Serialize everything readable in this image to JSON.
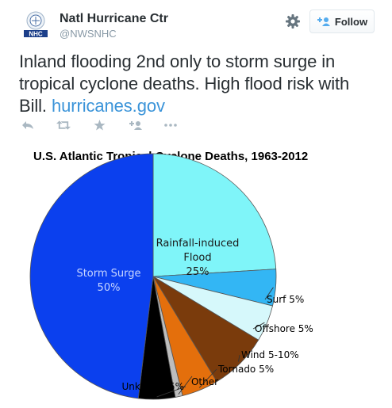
{
  "tweet": {
    "author_name": "Natl Hurricane Ctr",
    "handle": "@NWSNHC",
    "avatar_label": "NHC",
    "follow_label": "Follow",
    "text_before_link": "Inland flooding 2nd only to storm surge in tropical cyclone deaths. High flood risk with Bill. ",
    "link_text": "hurricanes.gov",
    "icons": [
      "reply-icon",
      "retweet-icon",
      "favorite-icon",
      "follow-icon",
      "more-icon",
      "gear-icon"
    ],
    "colors": {
      "link": "#3b94d9",
      "muted": "#8899a6",
      "text": "#292f33"
    }
  },
  "chart_data": {
    "type": "pie",
    "title": "U.S. Atlantic Tropical Cyclone Deaths,  1963-2012",
    "slices": [
      {
        "key": "flood",
        "name": "Rainfall-induced Flood",
        "value": 25,
        "label_lines": [
          "Rainfall-induced",
          "Flood",
          "25%"
        ],
        "color": "#7ff5f9"
      },
      {
        "key": "surf",
        "name": "Surf",
        "value": 5,
        "label": "Surf 5%",
        "color": "#33b6f4"
      },
      {
        "key": "offshore",
        "name": "Offshore",
        "value": 5,
        "label": "Offshore 5%",
        "color": "#d6f8fb"
      },
      {
        "key": "wind",
        "name": "Wind",
        "value": 8,
        "label": "Wind 5-10%",
        "color": "#7a3b0c"
      },
      {
        "key": "tornado",
        "name": "Tornado",
        "value": 5,
        "label": "Tornado 5%",
        "color": "#e46f0c"
      },
      {
        "key": "other",
        "name": "Other",
        "value": 1,
        "label": "Other",
        "color": "#bdbdbd"
      },
      {
        "key": "unknown",
        "name": "Unknown",
        "value": 5,
        "label": "Unknown 5%",
        "color": "#000000"
      },
      {
        "key": "surge",
        "name": "Storm Surge",
        "value": 50,
        "label_lines": [
          "Storm Surge",
          "50%"
        ],
        "color": "#0b40ee"
      }
    ]
  }
}
